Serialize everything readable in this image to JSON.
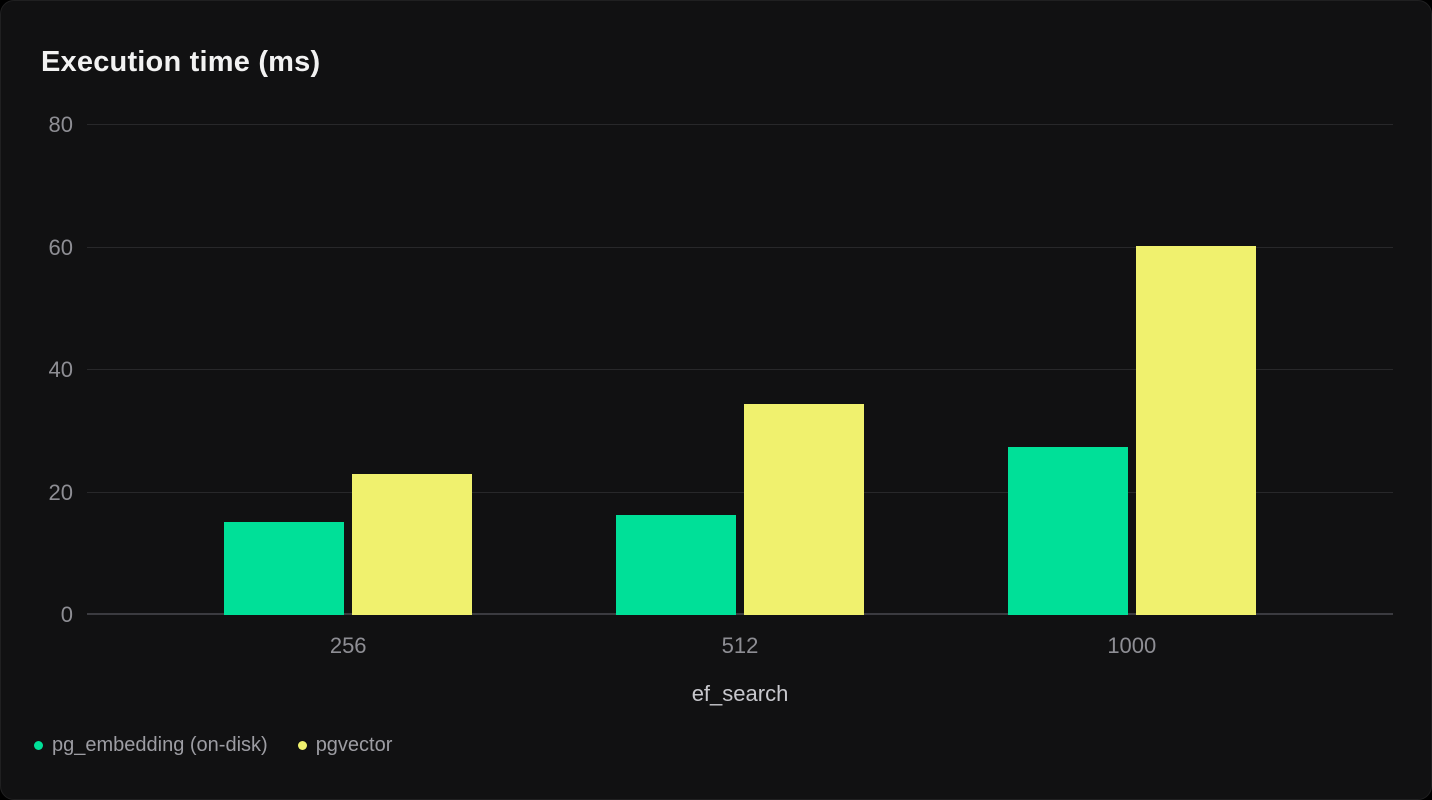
{
  "page": {
    "background": "#000000",
    "card_background": "#111112",
    "card_border": "#202021"
  },
  "chart_data": {
    "type": "bar",
    "title": "Execution time (ms)",
    "xlabel": "ef_search",
    "ylabel": "",
    "categories": [
      "256",
      "512",
      "1000"
    ],
    "series": [
      {
        "name": "pg_embedding (on-disk)",
        "color": "#00E098",
        "values": [
          15.2,
          16.4,
          27.5
        ]
      },
      {
        "name": "pgvector",
        "color": "#F0F16E",
        "values": [
          23.0,
          34.5,
          60.3
        ]
      }
    ],
    "ylim": [
      0,
      80
    ],
    "yticks": [
      0,
      20,
      40,
      60,
      80
    ],
    "grid": true,
    "legend_position": "bottom-left",
    "colors": {
      "gridline": "#28282a",
      "axis_line": "#3b3b40",
      "tick_text": "#8e8e94",
      "axis_title_text": "#c7c7cc",
      "legend_text": "#9d9da3",
      "title_text": "#f2f2f2"
    }
  }
}
